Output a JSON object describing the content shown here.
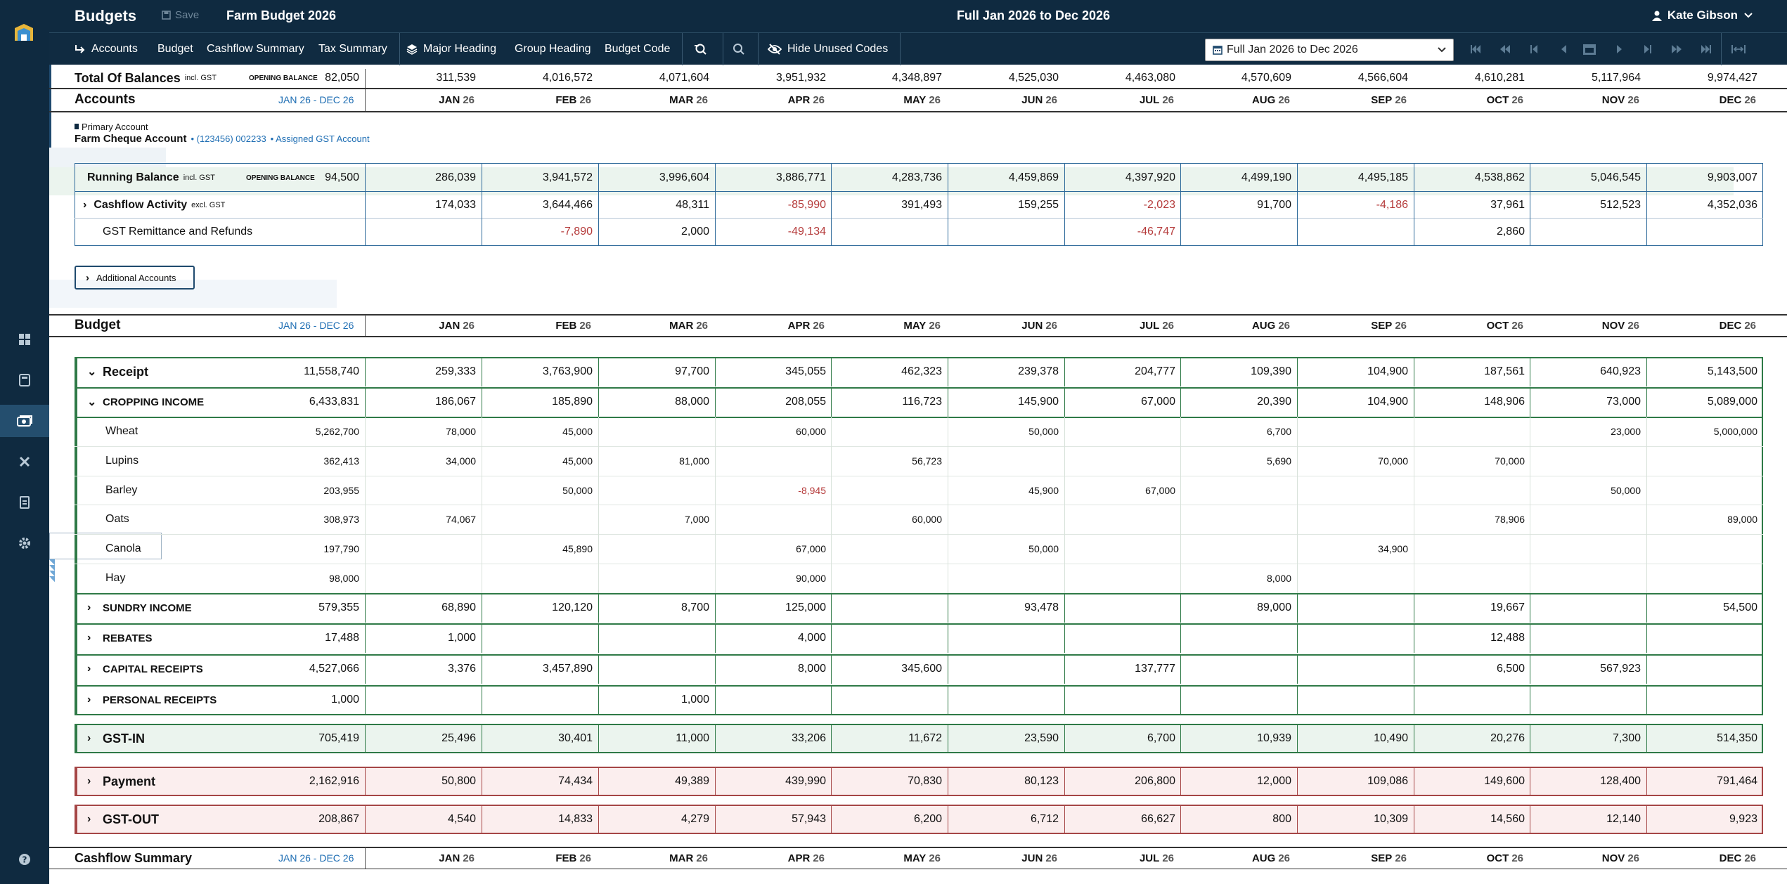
{
  "app": {
    "title": "Budgets",
    "save_label": "Save",
    "budget_name": "Farm Budget 2026",
    "period_title": "Full Jan 2026 to Dec 2026",
    "user_name": "Kate Gibson"
  },
  "toolbar": {
    "accounts": "Accounts",
    "budget": "Budget",
    "cashflow_summary": "Cashflow Summary",
    "tax_summary": "Tax Summary",
    "major_heading": "Major Heading",
    "group_heading": "Group Heading",
    "budget_code": "Budget Code",
    "hide_unused": "Hide Unused Codes",
    "period_select": "Full Jan 2026 to Dec 2026"
  },
  "months": [
    "JAN",
    "FEB",
    "MAR",
    "APR",
    "MAY",
    "JUN",
    "JUL",
    "AUG",
    "SEP",
    "OCT",
    "NOV",
    "DEC"
  ],
  "year_suffix": "26",
  "range_label": "JAN 26 - DEC 26",
  "opening_balance_label": "OPENING BALANCE",
  "total_balances": {
    "label": "Total Of Balances",
    "suffix": "incl. GST",
    "opening": "82,050",
    "values": [
      "311,539",
      "4,016,572",
      "4,071,604",
      "3,951,932",
      "4,348,897",
      "4,525,030",
      "4,463,080",
      "4,570,609",
      "4,566,604",
      "4,610,281",
      "5,117,964",
      "9,974,427"
    ]
  },
  "accounts": {
    "title": "Accounts",
    "primary_label": "Primary Account",
    "account_name": "Farm Cheque Account",
    "account_detail": "(123456) 002233",
    "assigned_gst": "Assigned GST Account",
    "running": {
      "label": "Running Balance",
      "suffix": "incl. GST",
      "opening": "94,500",
      "values": [
        "286,039",
        "3,941,572",
        "3,996,604",
        "3,886,771",
        "4,283,736",
        "4,459,869",
        "4,397,920",
        "4,499,190",
        "4,495,185",
        "4,538,862",
        "5,046,545",
        "9,903,007"
      ]
    },
    "cashflow": {
      "label": "Cashflow Activity",
      "suffix": "excl. GST",
      "values": [
        "174,033",
        "3,644,466",
        "48,311",
        "-85,990",
        "391,493",
        "159,255",
        "-2,023",
        "91,700",
        "-4,186",
        "37,961",
        "512,523",
        "4,352,036"
      ]
    },
    "gst_remit": {
      "label": "GST Remittance and Refunds",
      "values": [
        "",
        "-7,890",
        "2,000",
        "-49,134",
        "",
        "",
        "-46,747",
        "",
        "",
        "2,860",
        "",
        ""
      ]
    },
    "additional_button": "Additional Accounts"
  },
  "budget": {
    "title": "Budget",
    "rows": [
      {
        "label": "Receipt",
        "total": "11,558,740",
        "values": [
          "259,333",
          "3,763,900",
          "97,700",
          "345,055",
          "462,323",
          "239,378",
          "204,777",
          "109,390",
          "104,900",
          "187,561",
          "640,923",
          "5,143,500"
        ]
      },
      {
        "label": "CROPPING INCOME",
        "total": "6,433,831",
        "values": [
          "186,067",
          "185,890",
          "88,000",
          "208,055",
          "116,723",
          "145,900",
          "67,000",
          "20,390",
          "104,900",
          "148,906",
          "73,000",
          "5,089,000"
        ]
      },
      {
        "label": "Wheat",
        "total": "5,262,700",
        "values": [
          "78,000",
          "45,000",
          "",
          "60,000",
          "",
          "50,000",
          "",
          "6,700",
          "",
          "",
          "23,000",
          "5,000,000"
        ]
      },
      {
        "label": "Lupins",
        "total": "362,413",
        "values": [
          "34,000",
          "45,000",
          "81,000",
          "",
          "56,723",
          "",
          "",
          "5,690",
          "70,000",
          "70,000",
          "",
          ""
        ]
      },
      {
        "label": "Barley",
        "total": "203,955",
        "values": [
          "",
          "50,000",
          "",
          "-8,945",
          "",
          "45,900",
          "67,000",
          "",
          "",
          "",
          "50,000",
          ""
        ]
      },
      {
        "label": "Oats",
        "total": "308,973",
        "values": [
          "74,067",
          "",
          "7,000",
          "",
          "60,000",
          "",
          "",
          "",
          "",
          "78,906",
          "",
          "89,000"
        ]
      },
      {
        "label": "Canola",
        "total": "197,790",
        "values": [
          "",
          "45,890",
          "",
          "67,000",
          "",
          "50,000",
          "",
          "",
          "34,900",
          "",
          "",
          ""
        ]
      },
      {
        "label": "Hay",
        "total": "98,000",
        "values": [
          "",
          "",
          "",
          "90,000",
          "",
          "",
          "",
          "8,000",
          "",
          "",
          "",
          ""
        ]
      },
      {
        "label": "SUNDRY INCOME",
        "total": "579,355",
        "values": [
          "68,890",
          "120,120",
          "8,700",
          "125,000",
          "",
          "93,478",
          "",
          "89,000",
          "",
          "19,667",
          "",
          "54,500"
        ]
      },
      {
        "label": "REBATES",
        "total": "17,488",
        "values": [
          "1,000",
          "",
          "",
          "4,000",
          "",
          "",
          "",
          "",
          "",
          "12,488",
          "",
          ""
        ]
      },
      {
        "label": "CAPITAL RECEIPTS",
        "total": "4,527,066",
        "values": [
          "3,376",
          "3,457,890",
          "",
          "8,000",
          "345,600",
          "",
          "137,777",
          "",
          "",
          "6,500",
          "567,923",
          ""
        ]
      },
      {
        "label": "PERSONAL RECEIPTS",
        "total": "1,000",
        "values": [
          "",
          "",
          "1,000",
          "",
          "",
          "",
          "",
          "",
          "",
          "",
          "",
          ""
        ]
      },
      {
        "label": "GST-IN",
        "total": "705,419",
        "values": [
          "25,496",
          "30,401",
          "11,000",
          "33,206",
          "11,672",
          "23,590",
          "6,700",
          "10,939",
          "10,490",
          "20,276",
          "7,300",
          "514,350"
        ]
      },
      {
        "label": "Payment",
        "total": "2,162,916",
        "values": [
          "50,800",
          "74,434",
          "49,389",
          "439,990",
          "70,830",
          "80,123",
          "206,800",
          "12,000",
          "109,086",
          "149,600",
          "128,400",
          "791,464"
        ]
      },
      {
        "label": "GST-OUT",
        "total": "208,867",
        "values": [
          "4,540",
          "14,833",
          "4,279",
          "57,943",
          "6,200",
          "6,712",
          "66,627",
          "800",
          "10,309",
          "14,560",
          "12,140",
          "9,923"
        ]
      }
    ]
  },
  "cashflow_summary": {
    "title": "Cashflow Summary"
  }
}
